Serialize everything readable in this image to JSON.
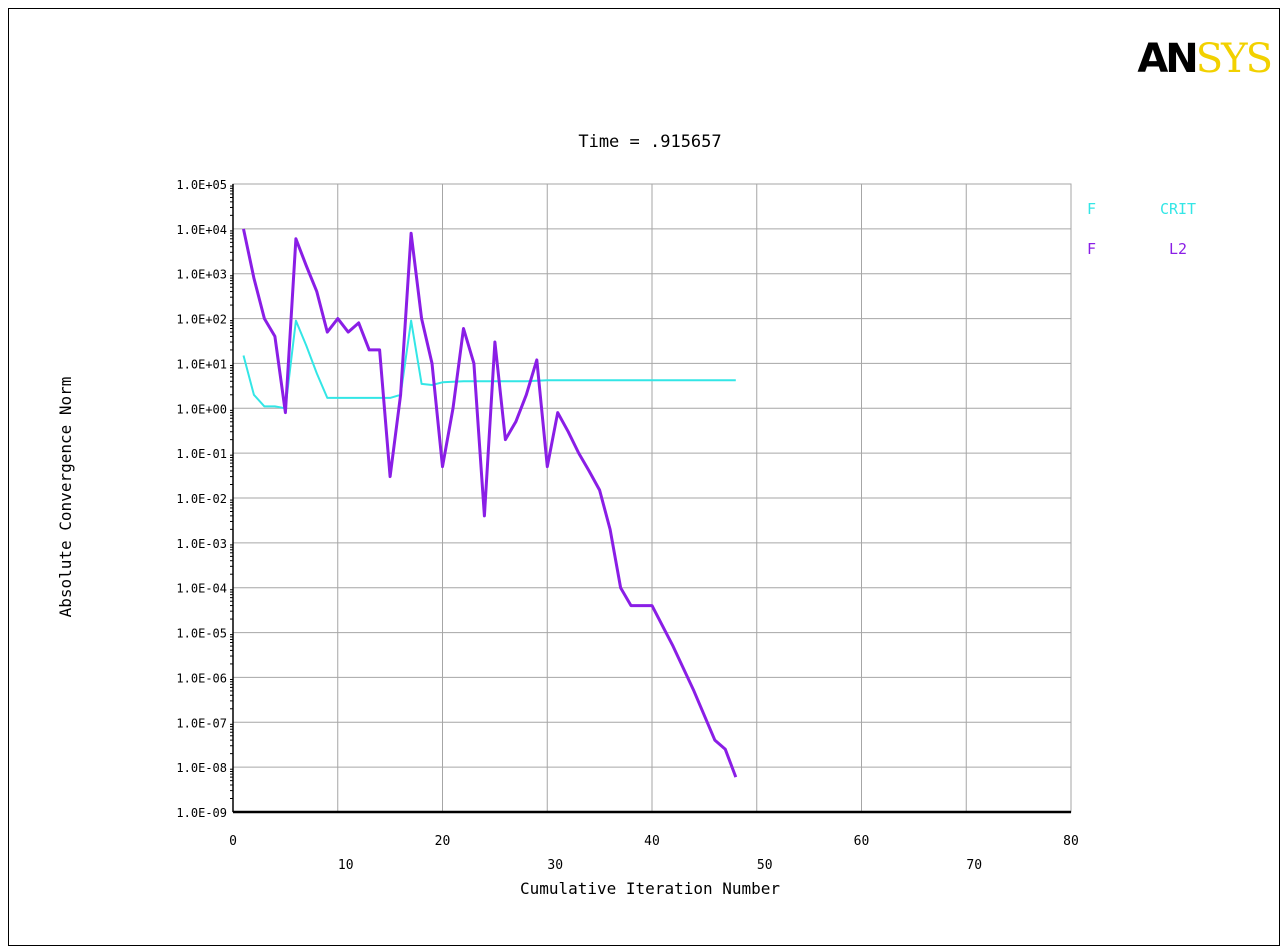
{
  "logo": {
    "part1": "AN",
    "part2": "SYS"
  },
  "colors": {
    "crit": "#33e6e6",
    "l2": "#8a1ee6",
    "grid": "#a6a6a6",
    "axis": "#000000"
  },
  "chart_data": {
    "type": "line",
    "title": "Time = .915657",
    "xlabel": "Cumulative Iteration Number",
    "ylabel": "Absolute Convergence Norm",
    "xlim": [
      0,
      80
    ],
    "ylim_exp": [
      -9,
      5
    ],
    "yscale": "log",
    "grid": true,
    "legend_position": "top-right",
    "x_ticks_row1": [
      "0",
      "20",
      "40",
      "60",
      "80"
    ],
    "x_ticks_row2": [
      "10",
      "30",
      "50",
      "70"
    ],
    "y_ticks": [
      "1.0E+05",
      "1.0E+04",
      "1.0E+03",
      "1.0E+02",
      "1.0E+01",
      "1.0E+00",
      "1.0E-01",
      "1.0E-02",
      "1.0E-03",
      "1.0E-04",
      "1.0E-05",
      "1.0E-06",
      "1.0E-07",
      "1.0E-08",
      "1.0E-09"
    ],
    "series": [
      {
        "name": "CRIT",
        "legend_prefix": "F",
        "color": "#33e6e6",
        "x": [
          1,
          2,
          3,
          4,
          5,
          6,
          7,
          8,
          9,
          10,
          11,
          12,
          13,
          14,
          15,
          16,
          17,
          18,
          19,
          20,
          22,
          24,
          26,
          28,
          30,
          32,
          35,
          38,
          40,
          44,
          48
        ],
        "y": [
          15,
          2,
          1.1,
          1.1,
          1.0,
          90,
          25,
          6,
          1.7,
          1.7,
          1.7,
          1.7,
          1.7,
          1.7,
          1.7,
          2,
          90,
          3.5,
          3.3,
          3.8,
          4.0,
          4.0,
          4.0,
          4.0,
          4.2,
          4.2,
          4.2,
          4.2,
          4.2,
          4.2,
          4.2
        ]
      },
      {
        "name": "L2",
        "legend_prefix": "F",
        "color": "#8a1ee6",
        "x": [
          1,
          2,
          3,
          4,
          5,
          6,
          7,
          8,
          9,
          10,
          11,
          12,
          13,
          14,
          15,
          16,
          17,
          18,
          19,
          20,
          21,
          22,
          23,
          24,
          25,
          26,
          27,
          28,
          29,
          30,
          31,
          32,
          33,
          34,
          35,
          36,
          37,
          38,
          39,
          40,
          42,
          44,
          46,
          47,
          48
        ],
        "y": [
          10000,
          800,
          100,
          40,
          0.8,
          6000,
          1500,
          400,
          50,
          100,
          50,
          80,
          20,
          20,
          0.03,
          2,
          8000,
          100,
          10,
          0.05,
          1,
          60,
          10,
          0.004,
          30,
          0.2,
          0.5,
          2,
          12,
          0.05,
          0.8,
          0.3,
          0.1,
          0.04,
          0.015,
          0.002,
          0.0001,
          4e-05,
          4e-05,
          4e-05,
          5e-06,
          5e-07,
          4e-08,
          2.5e-08,
          6e-09
        ]
      }
    ]
  }
}
